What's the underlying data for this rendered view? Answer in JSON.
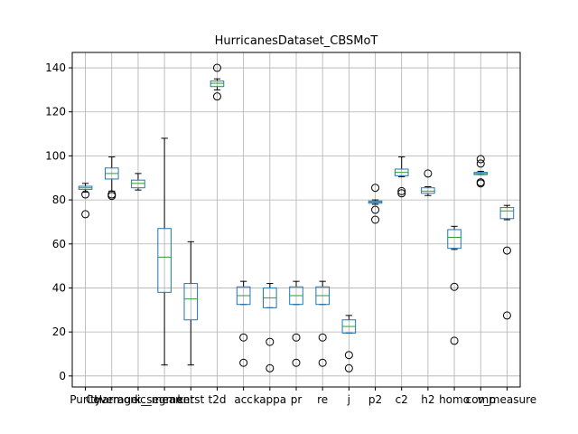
{
  "chart_data": {
    "type": "boxplot",
    "title": "HurricanesDataset_CBSMoT",
    "xlabel": "",
    "ylabel": "",
    "ylim": [
      -5,
      147
    ],
    "yticks": [
      0,
      20,
      40,
      60,
      80,
      100,
      120,
      140
    ],
    "grid": true,
    "colors": {
      "box": "#1f77b4",
      "median": "#2ca02c",
      "whisker": "#000000",
      "grid": "#b0b0b0"
    },
    "categories": [
      "Purity",
      "Coverage",
      "Harmonic_mean",
      "k_segment",
      "kerst",
      "t2d",
      "acc",
      "kappa",
      "pr",
      "re",
      "j",
      "p2",
      "c2",
      "h2",
      "homo",
      "comp",
      "v_measure"
    ],
    "boxes": [
      {
        "label": "Purity",
        "whislo": 83.5,
        "q1": 84.8,
        "med": 85.5,
        "q3": 86.2,
        "whishi": 87.5,
        "fliers": [
          82.5,
          73.5
        ]
      },
      {
        "label": "Coverage",
        "whislo": 84.0,
        "q1": 89.5,
        "med": 92.0,
        "q3": 94.5,
        "whishi": 99.5,
        "fliers": [
          82.5,
          81.8
        ]
      },
      {
        "label": "Harmonic_mean",
        "whislo": 84.5,
        "q1": 85.5,
        "med": 87.5,
        "q3": 89.0,
        "whishi": 92.0,
        "fliers": []
      },
      {
        "label": "k_segment",
        "whislo": 5.0,
        "q1": 38.0,
        "med": 54.0,
        "q3": 67.0,
        "whishi": 108.0,
        "fliers": []
      },
      {
        "label": "kerst",
        "whislo": 5.0,
        "q1": 25.5,
        "med": 35.0,
        "q3": 42.0,
        "whishi": 61.0,
        "fliers": []
      },
      {
        "label": "t2d",
        "whislo": 130.0,
        "q1": 131.5,
        "med": 133.0,
        "q3": 134.0,
        "whishi": 135.0,
        "fliers": [
          140.0,
          127.0
        ]
      },
      {
        "label": "acc",
        "whislo": 32.5,
        "q1": 32.5,
        "med": 36.5,
        "q3": 40.5,
        "whishi": 43.0,
        "fliers": [
          17.5,
          6.0
        ]
      },
      {
        "label": "kappa",
        "whislo": 31.0,
        "q1": 31.0,
        "med": 35.5,
        "q3": 40.0,
        "whishi": 42.0,
        "fliers": [
          15.5,
          3.5
        ]
      },
      {
        "label": "pr",
        "whislo": 32.5,
        "q1": 32.5,
        "med": 36.5,
        "q3": 40.5,
        "whishi": 43.0,
        "fliers": [
          17.5,
          6.0
        ]
      },
      {
        "label": "re",
        "whislo": 32.5,
        "q1": 32.5,
        "med": 36.5,
        "q3": 40.5,
        "whishi": 43.0,
        "fliers": [
          17.5,
          6.0
        ]
      },
      {
        "label": "j",
        "whislo": 19.5,
        "q1": 19.5,
        "med": 22.5,
        "q3": 25.5,
        "whishi": 27.5,
        "fliers": [
          9.5,
          3.5
        ]
      },
      {
        "label": "p2",
        "whislo": 78.0,
        "q1": 78.5,
        "med": 79.0,
        "q3": 79.5,
        "whishi": 80.0,
        "fliers": [
          85.5,
          75.5,
          71.0
        ]
      },
      {
        "label": "c2",
        "whislo": 90.5,
        "q1": 91.0,
        "med": 92.5,
        "q3": 94.0,
        "whishi": 99.5,
        "fliers": [
          84.0,
          83.0
        ]
      },
      {
        "label": "h2",
        "whislo": 82.0,
        "q1": 83.0,
        "med": 84.0,
        "q3": 85.5,
        "whishi": 86.0,
        "fliers": [
          92.0
        ]
      },
      {
        "label": "homo",
        "whislo": 57.5,
        "q1": 58.0,
        "med": 63.0,
        "q3": 66.5,
        "whishi": 68.0,
        "fliers": [
          40.5,
          16.0
        ]
      },
      {
        "label": "comp",
        "whislo": 91.5,
        "q1": 91.5,
        "med": 92.0,
        "q3": 92.5,
        "whishi": 93.0,
        "fliers": [
          98.5,
          96.5,
          88.0,
          87.5
        ]
      },
      {
        "label": "v_measure",
        "whislo": 71.0,
        "q1": 71.5,
        "med": 75.0,
        "q3": 76.5,
        "whishi": 77.5,
        "fliers": [
          57.0,
          27.5
        ]
      }
    ]
  }
}
